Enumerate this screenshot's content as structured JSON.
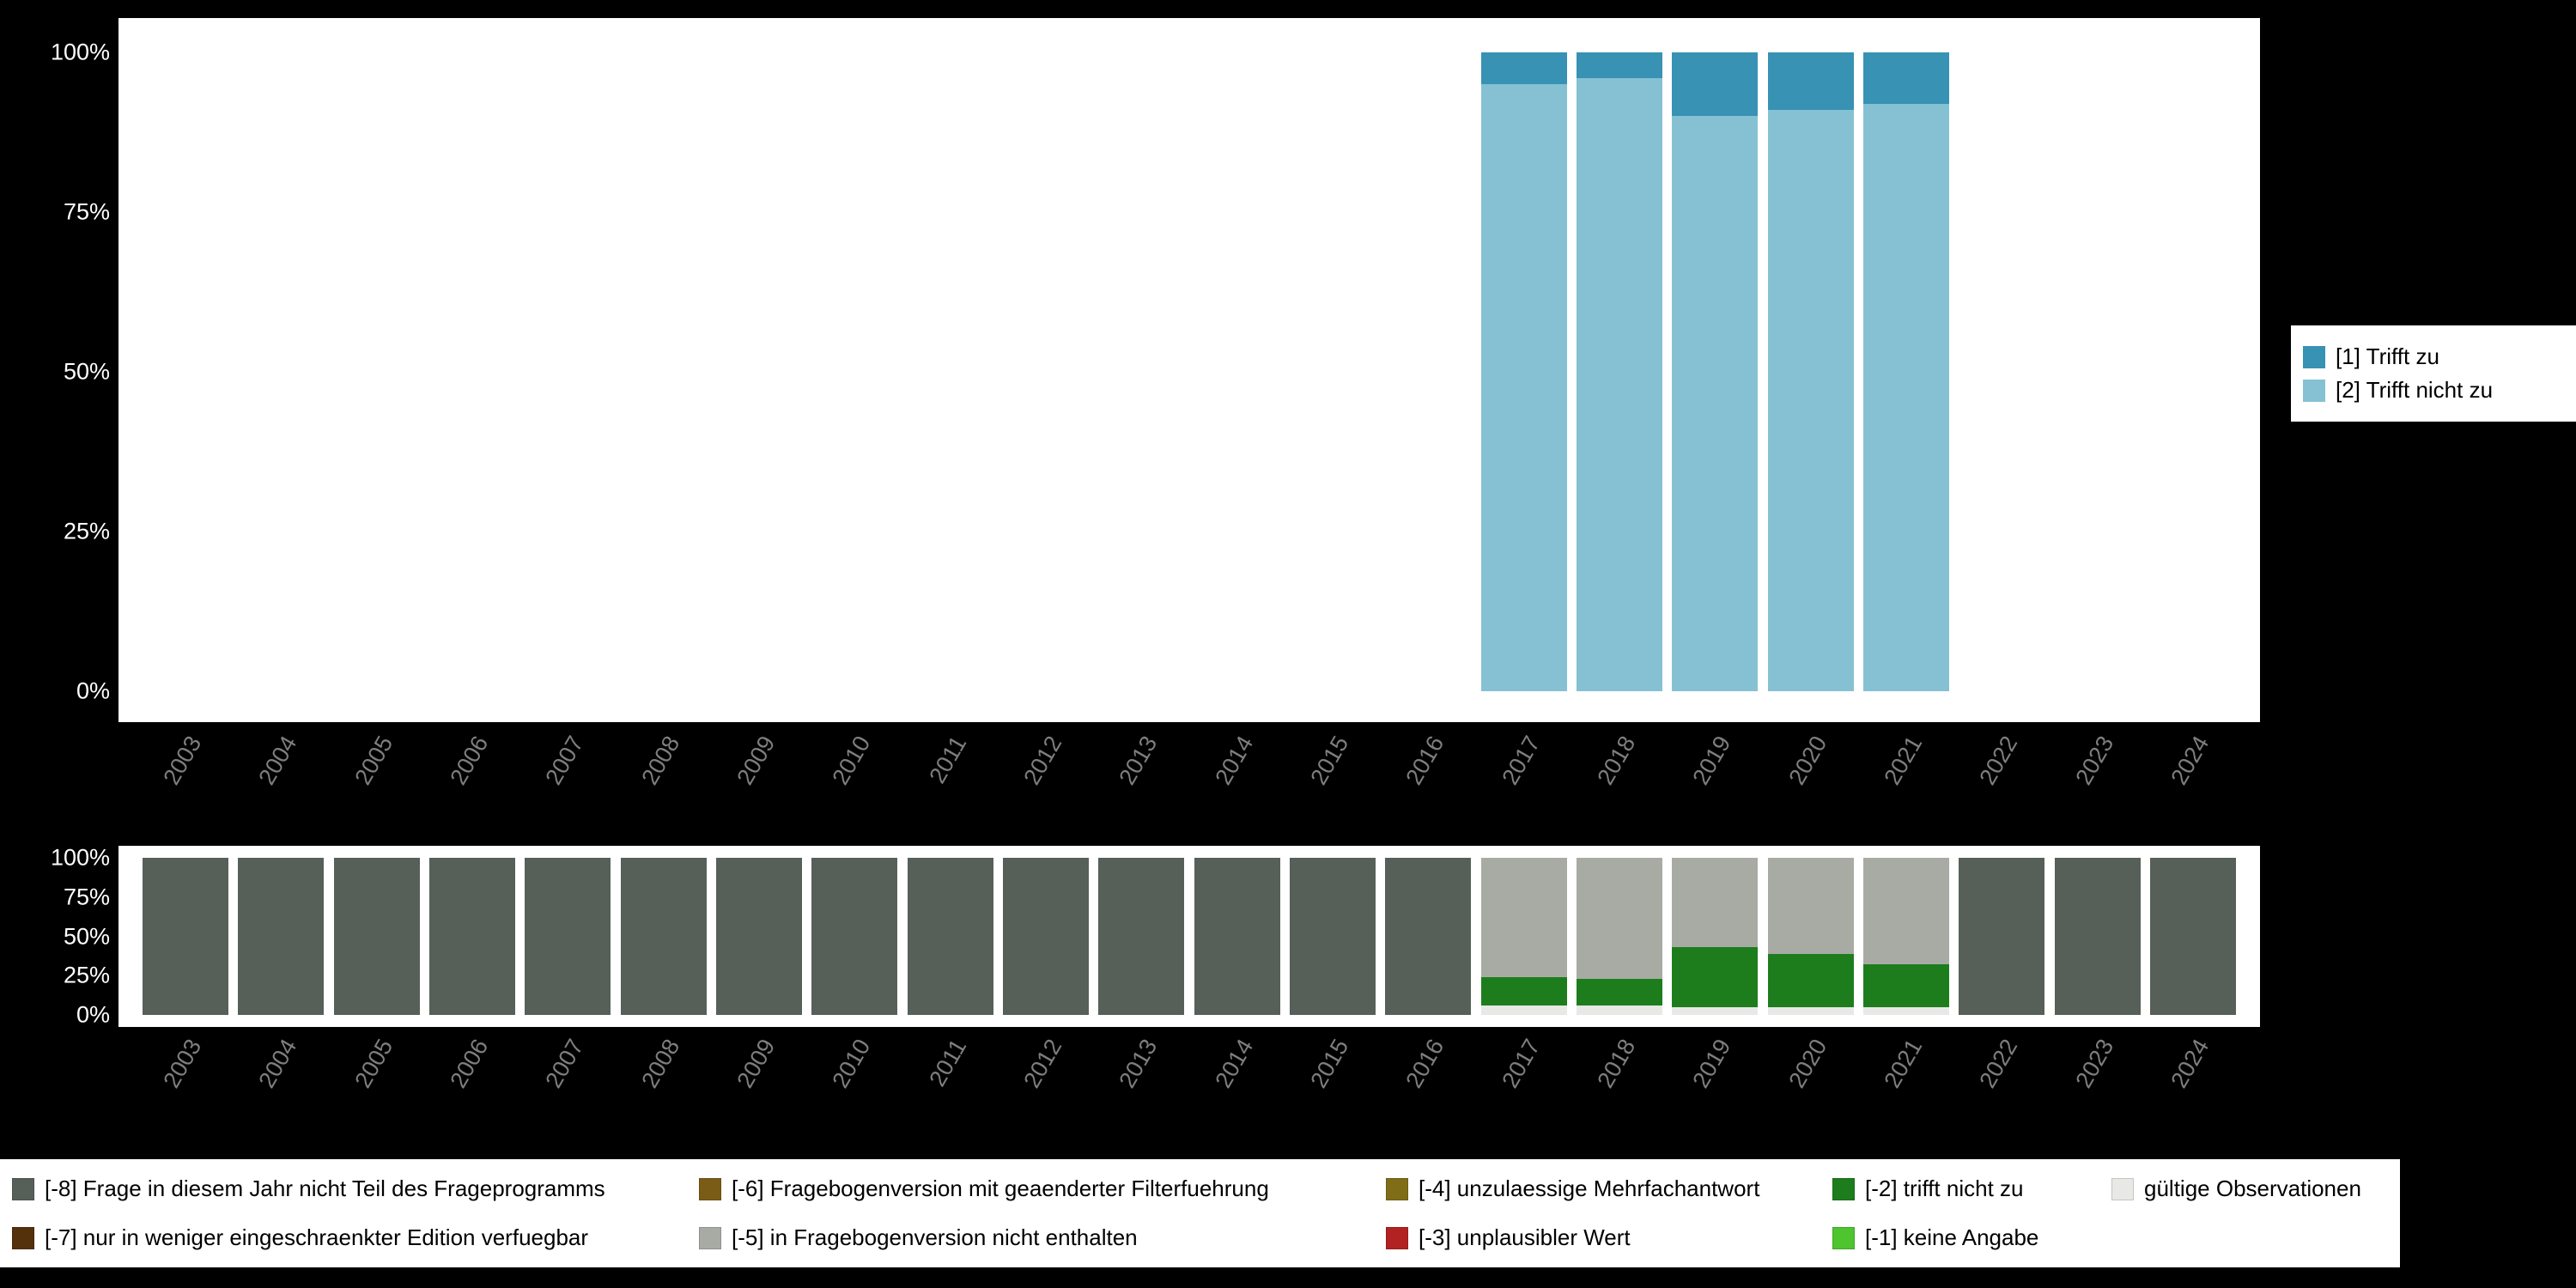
{
  "page": {
    "background": "#000000",
    "panel_background": "#ffffff",
    "axis_text_color": "#ffffff",
    "year_label_color": "#7e7e7e",
    "legend_text_color": "#000000"
  },
  "legend_top": {
    "position": "right",
    "items": [
      {
        "label": "[1] Trifft zu",
        "color": "#3792b4"
      },
      {
        "label": "[2] Trifft nicht zu",
        "color": "#85c1d3"
      }
    ]
  },
  "legend_bottom": {
    "position": "bottom",
    "items": [
      {
        "label": "[-8] Frage in diesem Jahr nicht Teil des Frageprogramms",
        "color": "#566059"
      },
      {
        "label": "[-7] nur in weniger eingeschraenkter Edition verfuegbar",
        "color": "#54300b"
      },
      {
        "label": "[-6] Fragebogenversion mit geaenderter Filterfuehrung",
        "color": "#7a5c16"
      },
      {
        "label": "[-5] in Fragebogenversion nicht enthalten",
        "color": "#a8aba4"
      },
      {
        "label": "[-4] unzulaessige Mehrfachantwort",
        "color": "#7f6d18"
      },
      {
        "label": "[-3] unplausibler Wert",
        "color": "#b22222"
      },
      {
        "label": "[-2] trifft nicht zu",
        "color": "#1d7d1d"
      },
      {
        "label": "[-1] keine Angabe",
        "color": "#4ec42e"
      },
      {
        "label": "gültige Observationen",
        "color": "#e8e8e6"
      }
    ]
  },
  "chart_data": [
    {
      "type": "bar",
      "stacked": true,
      "title": "",
      "xlabel": "",
      "ylabel": "",
      "ylim": [
        0,
        100
      ],
      "grid": false,
      "legend_position": "right",
      "yticks": [
        "100%",
        "75%",
        "50%",
        "25%",
        "0%"
      ],
      "categories": [
        "2003",
        "2004",
        "2005",
        "2006",
        "2007",
        "2008",
        "2009",
        "2010",
        "2011",
        "2012",
        "2013",
        "2014",
        "2015",
        "2016",
        "2017",
        "2018",
        "2019",
        "2020",
        "2021",
        "2022",
        "2023",
        "2024"
      ],
      "series": [
        {
          "name": "[1] Trifft zu",
          "color": "#3792b4",
          "values": [
            null,
            null,
            null,
            null,
            null,
            null,
            null,
            null,
            null,
            null,
            null,
            null,
            null,
            null,
            5,
            4,
            10,
            9,
            8,
            null,
            null,
            null
          ]
        },
        {
          "name": "[2] Trifft nicht zu",
          "color": "#85c1d3",
          "values": [
            null,
            null,
            null,
            null,
            null,
            null,
            null,
            null,
            null,
            null,
            null,
            null,
            null,
            null,
            95,
            96,
            90,
            91,
            92,
            null,
            null,
            null
          ]
        }
      ]
    },
    {
      "type": "bar",
      "stacked": true,
      "title": "",
      "xlabel": "",
      "ylabel": "",
      "ylim": [
        0,
        100
      ],
      "grid": false,
      "legend_position": "bottom",
      "yticks": [
        "100%",
        "75%",
        "50%",
        "25%",
        "0%"
      ],
      "categories": [
        "2003",
        "2004",
        "2005",
        "2006",
        "2007",
        "2008",
        "2009",
        "2010",
        "2011",
        "2012",
        "2013",
        "2014",
        "2015",
        "2016",
        "2017",
        "2018",
        "2019",
        "2020",
        "2021",
        "2022",
        "2023",
        "2024"
      ],
      "series": [
        {
          "name": "[-8] Frage in diesem Jahr nicht Teil des Frageprogramms",
          "color": "#566059",
          "values": [
            100,
            100,
            100,
            100,
            100,
            100,
            100,
            100,
            100,
            100,
            100,
            100,
            100,
            100,
            0,
            0,
            0,
            0,
            0,
            100,
            100,
            100
          ]
        },
        {
          "name": "[-5] in Fragebogenversion nicht enthalten",
          "color": "#a8aba4",
          "values": [
            0,
            0,
            0,
            0,
            0,
            0,
            0,
            0,
            0,
            0,
            0,
            0,
            0,
            0,
            76,
            77,
            57,
            61,
            68,
            0,
            0,
            0
          ]
        },
        {
          "name": "[-2] trifft nicht zu",
          "color": "#1d7d1d",
          "values": [
            0,
            0,
            0,
            0,
            0,
            0,
            0,
            0,
            0,
            0,
            0,
            0,
            0,
            0,
            18,
            17,
            38,
            34,
            27,
            0,
            0,
            0
          ]
        },
        {
          "name": "gültige Observationen",
          "color": "#e8e8e6",
          "values": [
            0,
            0,
            0,
            0,
            0,
            0,
            0,
            0,
            0,
            0,
            0,
            0,
            0,
            0,
            6,
            6,
            5,
            5,
            5,
            0,
            0,
            0
          ]
        }
      ]
    }
  ]
}
